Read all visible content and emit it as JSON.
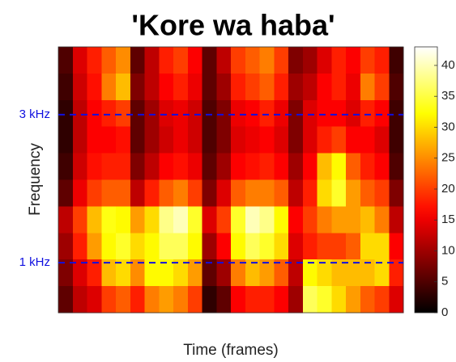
{
  "chart_data": {
    "type": "heatmap",
    "title": "'Kore wa haba'",
    "xlabel": "Time (frames)",
    "ylabel": "Frequency",
    "colormap": "hot",
    "clim": [
      0,
      43
    ],
    "cticks": [
      0,
      5,
      10,
      15,
      20,
      25,
      30,
      35,
      40
    ],
    "ylim": [
      325,
      3915
    ],
    "yticks": [
      {
        "value": 1000,
        "label": "1 kHz"
      },
      {
        "value": 3000,
        "label": "3 kHz"
      }
    ],
    "grid": true,
    "grid_color": "#1010e0",
    "grid_style": "dashed",
    "z": [
      [
        5,
        14,
        18,
        22,
        25,
        6,
        12,
        18,
        20,
        16,
        6,
        12,
        20,
        22,
        24,
        20,
        8,
        10,
        14,
        18,
        16,
        20,
        18,
        4
      ],
      [
        4,
        13,
        17,
        24,
        28,
        8,
        12,
        16,
        18,
        15,
        6,
        10,
        18,
        20,
        22,
        18,
        10,
        12,
        16,
        18,
        15,
        24,
        20,
        5
      ],
      [
        3,
        12,
        16,
        18,
        20,
        6,
        10,
        14,
        15,
        13,
        5,
        8,
        15,
        16,
        18,
        15,
        8,
        14,
        16,
        16,
        14,
        18,
        16,
        4
      ],
      [
        3,
        12,
        16,
        16,
        17,
        6,
        10,
        13,
        15,
        13,
        5,
        8,
        14,
        15,
        16,
        14,
        8,
        14,
        18,
        20,
        16,
        16,
        14,
        4
      ],
      [
        4,
        13,
        17,
        18,
        18,
        8,
        12,
        16,
        17,
        15,
        6,
        10,
        16,
        17,
        18,
        16,
        10,
        16,
        28,
        32,
        22,
        18,
        16,
        5
      ],
      [
        6,
        15,
        20,
        22,
        22,
        12,
        18,
        22,
        24,
        20,
        8,
        14,
        22,
        24,
        24,
        22,
        12,
        18,
        30,
        34,
        26,
        22,
        20,
        8
      ],
      [
        12,
        20,
        28,
        33,
        32,
        26,
        30,
        38,
        40,
        34,
        14,
        20,
        34,
        40,
        38,
        32,
        16,
        20,
        24,
        26,
        26,
        28,
        24,
        12
      ],
      [
        10,
        18,
        26,
        32,
        34,
        30,
        32,
        36,
        36,
        32,
        10,
        16,
        32,
        36,
        34,
        30,
        14,
        18,
        20,
        20,
        22,
        30,
        30,
        16
      ],
      [
        8,
        14,
        18,
        28,
        30,
        25,
        32,
        32,
        30,
        26,
        6,
        10,
        24,
        28,
        26,
        22,
        12,
        32,
        30,
        28,
        28,
        28,
        30,
        18
      ],
      [
        6,
        12,
        14,
        20,
        22,
        18,
        24,
        26,
        24,
        20,
        3,
        6,
        16,
        18,
        18,
        16,
        10,
        36,
        34,
        30,
        26,
        22,
        20,
        14
      ]
    ]
  }
}
